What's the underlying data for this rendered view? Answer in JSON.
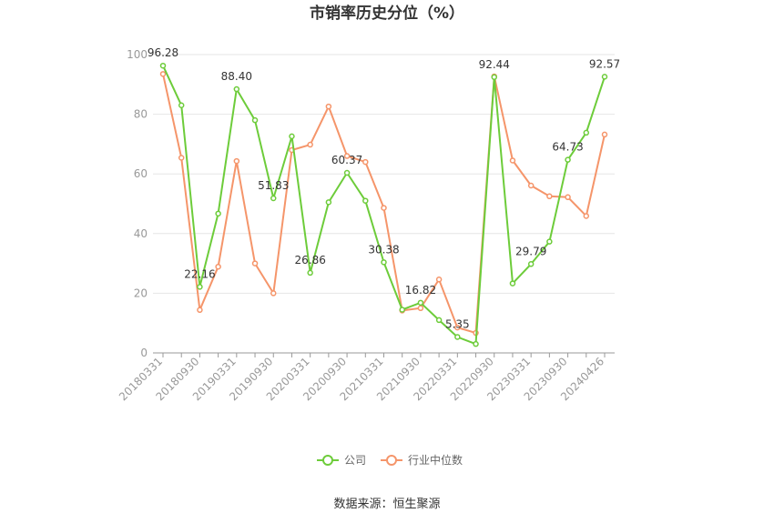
{
  "chart_data": {
    "type": "line",
    "title": "市销率历史分位（%）",
    "xlabel": "",
    "ylabel": "",
    "ylim": [
      0,
      100
    ],
    "yticks": [
      0,
      20,
      40,
      60,
      80,
      100
    ],
    "x_tick_labels": [
      "20180331",
      "20180930",
      "20190331",
      "20190930",
      "20200331",
      "20200930",
      "20210331",
      "20210930",
      "20220331",
      "20220930",
      "20230331",
      "20230930",
      "20240426"
    ],
    "x_tick_every": 2,
    "grid": true,
    "legend_position": "bottom",
    "colors": {
      "company": "#6dcc3a",
      "industry": "#f5956a"
    },
    "series": [
      {
        "name": "公司",
        "values": [
          96.28,
          83.0,
          22.16,
          46.7,
          88.4,
          78.0,
          51.83,
          72.6,
          26.86,
          50.5,
          60.37,
          51.0,
          30.38,
          14.5,
          16.82,
          11.0,
          5.35,
          3.0,
          92.44,
          23.3,
          29.79,
          37.3,
          64.73,
          73.8,
          92.57
        ]
      },
      {
        "name": "行业中位数",
        "values": [
          93.5,
          65.4,
          14.4,
          28.9,
          64.3,
          30.0,
          20.0,
          68.0,
          69.8,
          82.6,
          66.0,
          64.0,
          48.6,
          14.2,
          15.0,
          24.6,
          8.5,
          6.7,
          92.7,
          64.5,
          56.1,
          52.5,
          52.2,
          45.9,
          73.2
        ]
      }
    ],
    "data_labels": [
      {
        "series": 0,
        "index": 0,
        "text": "96.28"
      },
      {
        "series": 0,
        "index": 2,
        "text": "22.16"
      },
      {
        "series": 0,
        "index": 4,
        "text": "88.40"
      },
      {
        "series": 0,
        "index": 6,
        "text": "51.83"
      },
      {
        "series": 0,
        "index": 8,
        "text": "26.86"
      },
      {
        "series": 0,
        "index": 10,
        "text": "60.37"
      },
      {
        "series": 0,
        "index": 12,
        "text": "30.38"
      },
      {
        "series": 0,
        "index": 14,
        "text": "16.82"
      },
      {
        "series": 0,
        "index": 16,
        "text": "5.35"
      },
      {
        "series": 0,
        "index": 18,
        "text": "92.44"
      },
      {
        "series": 0,
        "index": 20,
        "text": "29.79"
      },
      {
        "series": 0,
        "index": 22,
        "text": "64.73"
      },
      {
        "series": 0,
        "index": 24,
        "text": "92.57"
      }
    ]
  },
  "source_text": "数据来源：恒生聚源"
}
